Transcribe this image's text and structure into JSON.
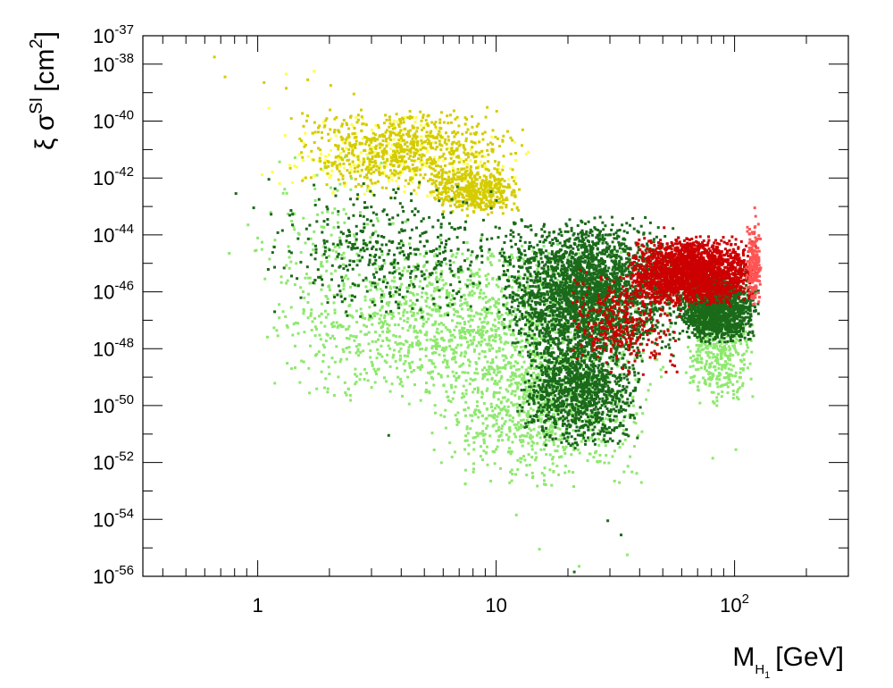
{
  "chart_data": {
    "type": "scatter",
    "xscale": "log",
    "yscale": "log",
    "xlim": [
      0.33,
      300
    ],
    "ylim": [
      1e-56,
      1e-37
    ],
    "grid": false,
    "legend": "none",
    "xlabel": {
      "main": "M",
      "sub": "H",
      "subsub": "1",
      "unit": "[GeV]"
    },
    "ylabel": {
      "prefix": "ξ σ",
      "sup": "SI",
      "unit_open": "[cm",
      "unit_sup": "2",
      "unit_close": "]"
    },
    "x_ticks": [
      {
        "value": 1,
        "label": "1"
      },
      {
        "value": 10,
        "label": "10"
      },
      {
        "value": 100,
        "base": "10",
        "exp": "2"
      }
    ],
    "y_ticks": [
      {
        "value": -37,
        "base": "10",
        "exp": "-37"
      },
      {
        "value": -38,
        "base": "10",
        "exp": "-38"
      },
      {
        "value": -40,
        "base": "10",
        "exp": "-40"
      },
      {
        "value": -42,
        "base": "10",
        "exp": "-42"
      },
      {
        "value": -44,
        "base": "10",
        "exp": "-44"
      },
      {
        "value": -46,
        "base": "10",
        "exp": "-46"
      },
      {
        "value": -48,
        "base": "10",
        "exp": "-48"
      },
      {
        "value": -50,
        "base": "10",
        "exp": "-50"
      },
      {
        "value": -52,
        "base": "10",
        "exp": "-52"
      },
      {
        "value": -54,
        "base": "10",
        "exp": "-54"
      },
      {
        "value": -56,
        "base": "10",
        "exp": "-56"
      }
    ],
    "series": [
      {
        "color": "#8ee86e",
        "clusters": [
          {
            "x": [
              1.0,
              60.0
            ],
            "y_log10": [
              -50.0,
              -44.0
            ],
            "n": 1500
          },
          {
            "x": [
              5.0,
              45.0
            ],
            "y_log10": [
              -53.0,
              -47.0
            ],
            "n": 900
          },
          {
            "x": [
              60.0,
              120.0
            ],
            "y_log10": [
              -50.0,
              -46.0
            ],
            "n": 400
          },
          {
            "x": [
              0.8,
              5.0
            ],
            "y_log10": [
              -47.0,
              -41.0
            ],
            "n": 120
          }
        ],
        "points": [
          [
            0.75,
            -44.6
          ],
          [
            0.9,
            -43.6
          ],
          [
            1.2,
            -47.5
          ],
          [
            2.3,
            -49.5
          ],
          [
            10.0,
            -51.4
          ],
          [
            12.0,
            -53.8
          ],
          [
            15.0,
            -55.0
          ],
          [
            22.0,
            -55.6
          ],
          [
            35.0,
            -55.2
          ],
          [
            80.0,
            -51.8
          ],
          [
            100.0,
            -51.5
          ]
        ]
      },
      {
        "color": "#ffff44",
        "clusters": [
          {
            "x": [
              1.0,
              14.0
            ],
            "y_log10": [
              -42.8,
              -39.6
            ],
            "n": 250
          }
        ],
        "points": [
          [
            1.3,
            -38.3
          ],
          [
            1.7,
            -38.2
          ],
          [
            1.1,
            -39.5
          ]
        ]
      },
      {
        "color": "#d4cc00",
        "clusters": [
          {
            "x": [
              1.3,
              13.0
            ],
            "y_log10": [
              -42.5,
              -39.4
            ],
            "n": 750
          },
          {
            "x": [
              5.0,
              13.0
            ],
            "y_log10": [
              -43.3,
              -41.5
            ],
            "n": 450
          }
        ],
        "points": [
          [
            0.65,
            -37.7
          ],
          [
            0.72,
            -38.4
          ],
          [
            1.05,
            -38.6
          ],
          [
            1.3,
            -38.8
          ],
          [
            1.6,
            -38.5
          ],
          [
            2.0,
            -38.7
          ],
          [
            2.5,
            -39.0
          ]
        ]
      },
      {
        "color": "#1a6a1a",
        "clusters": [
          {
            "x": [
              1.0,
              14.0
            ],
            "y_log10": [
              -47.0,
              -42.0
            ],
            "n": 450
          },
          {
            "x": [
              10.0,
              60.0
            ],
            "y_log10": [
              -48.5,
              -43.3
            ],
            "n": 2600
          },
          {
            "x": [
              12.0,
              40.0
            ],
            "y_log10": [
              -51.5,
              -47.0
            ],
            "n": 1200
          },
          {
            "x": [
              55.0,
              125.0
            ],
            "y_log10": [
              -47.8,
              -45.2
            ],
            "n": 1500
          }
        ],
        "points": [
          [
            0.8,
            -42.5
          ],
          [
            0.95,
            -43.0
          ],
          [
            1.1,
            -42.0
          ],
          [
            1.7,
            -42.2
          ],
          [
            3.5,
            -51.0
          ],
          [
            21.0,
            -55.8
          ],
          [
            29.0,
            -54.0
          ],
          [
            33.0,
            -54.5
          ]
        ]
      },
      {
        "color": "#cc0000",
        "clusters": [
          {
            "x": [
              35.0,
              125.0
            ],
            "y_log10": [
              -46.5,
              -44.0
            ],
            "n": 2200
          },
          {
            "x": [
              20.0,
              60.0
            ],
            "y_log10": [
              -49.0,
              -45.0
            ],
            "n": 350
          }
        ],
        "points": [
          [
            50.0,
            -43.7
          ],
          [
            117.0,
            -44.2
          ],
          [
            119.0,
            -43.9
          ]
        ]
      },
      {
        "color": "#ff5555",
        "clusters": [
          {
            "x": [
              110.0,
              128.0
            ],
            "y_log10": [
              -46.5,
              -43.5
            ],
            "n": 200
          }
        ],
        "points": [
          [
            120.0,
            -43.0
          ],
          [
            121.0,
            -43.3
          ]
        ]
      }
    ]
  }
}
